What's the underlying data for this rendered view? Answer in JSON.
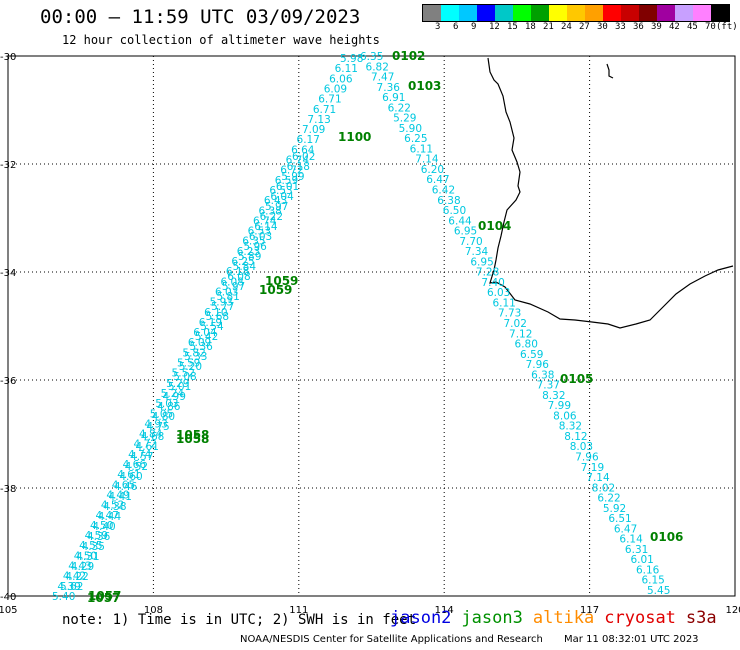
{
  "header": {
    "title": "00:00 – 11:59 UTC 03/09/2023",
    "subtitle": "12 hour collection of altimeter wave heights"
  },
  "legend": {
    "unit": "(ft)",
    "ticks": [
      "3",
      "6",
      "9",
      "12",
      "15",
      "18",
      "21",
      "24",
      "27",
      "30",
      "33",
      "36",
      "39",
      "42",
      "45",
      "70"
    ],
    "colors": [
      "#808080",
      "#00ffff",
      "#00c8ff",
      "#0000ff",
      "#00c8c8",
      "#00ff00",
      "#00a000",
      "#ffff00",
      "#ffc800",
      "#ffa000",
      "#ff0000",
      "#c80000",
      "#800000",
      "#a000a0",
      "#c8a0ff",
      "#ff80ff",
      "#000000"
    ]
  },
  "map": {
    "lat_ticks": [
      "-30",
      "-32",
      "-34",
      "-36",
      "-38",
      "-40"
    ],
    "lon_ticks": [
      "105",
      "108",
      "111",
      "114",
      "117",
      "120"
    ],
    "track_color": "#00c8e0",
    "time_color": "#008000",
    "tracks": [
      {
        "id": "descending",
        "values": [
          "6.35",
          "6.82",
          "7.47",
          "7.36",
          "6.91",
          "6.22",
          "5.29",
          "5.90",
          "6.25",
          "6.11",
          "7.14",
          "6.20",
          "6.47",
          "6.42",
          "6.38",
          "6.50",
          "6.44",
          "6.95",
          "7.70",
          "7.34",
          "6.95",
          "7.28",
          "7.40",
          "6.03",
          "6.11",
          "7.73",
          "7.02",
          "7.12",
          "6.80",
          "6.59",
          "7.96",
          "6.38",
          "7.37",
          "8.32",
          "7.99",
          "8.06",
          "8.32",
          "8.12",
          "8.03",
          "7.96",
          "7.19",
          "7.14",
          "8.02",
          "6.22",
          "5.92",
          "6.51",
          "6.47",
          "6.14",
          "6.31",
          "6.01",
          "6.16",
          "6.15",
          "5.45"
        ]
      },
      {
        "id": "ascending-a",
        "values": [
          "5.98",
          "6.11",
          "6.06",
          "6.09",
          "6.71",
          "6.71",
          "7.13",
          "7.09",
          "6.17",
          "6.64",
          "6.74",
          "6.72",
          "6.59",
          "6.53",
          "6.43",
          "6.38",
          "6.74",
          "6.53",
          "6.35",
          "6.23",
          "6.25",
          "6.18",
          "6.08",
          "6.03",
          "5.93",
          "6.10",
          "6.19",
          "6.04",
          "6.09",
          "5.82",
          "5.59",
          "5.52",
          "5.29",
          "5.24",
          "5.03",
          "5.05",
          "4.93",
          "4.84",
          "4.72",
          "4.74",
          "4.66",
          "4.61",
          "4.65",
          "4.49",
          "4.52",
          "4.47",
          "4.50",
          "4.59",
          "4.55",
          "4.50",
          "4.43",
          "4.42",
          "4.39",
          "5.40"
        ]
      },
      {
        "id": "ascending-b",
        "values": [
          "6.02",
          "6.18",
          "5.99",
          "6.01",
          "6.04",
          "5.97",
          "6.22",
          "6.14",
          "6.03",
          "5.96",
          "5.89",
          "5.84",
          "6.08",
          "5.97",
          "5.81",
          "5.77",
          "5.68",
          "5.54",
          "5.42",
          "5.36",
          "5.33",
          "5.20",
          "5.08",
          "5.01",
          "4.99",
          "4.86",
          "4.80",
          "4.75",
          "4.68",
          "4.61",
          "4.57",
          "4.52",
          "4.60",
          "4.46",
          "4.41",
          "4.38",
          "4.44",
          "4.40",
          "4.36",
          "4.35",
          "4.31",
          "4.29",
          "4.22",
          "5.62"
        ]
      }
    ],
    "time_labels": [
      "0102",
      "0103",
      "1100",
      "0104",
      "1059",
      "1059",
      "0105",
      "1058",
      "1058",
      "0106",
      "1057",
      "1057"
    ]
  },
  "footer": {
    "note": "note: 1) Time is in UTC; 2) SWH is in feet",
    "satellites": [
      {
        "name": "jason2",
        "color": "#0000e0"
      },
      {
        "name": "jason3",
        "color": "#009000"
      },
      {
        "name": "altika",
        "color": "#ff8c00"
      },
      {
        "name": "cryosat",
        "color": "#e00000"
      },
      {
        "name": "s3a",
        "color": "#8b0000"
      }
    ],
    "credit": "NOAA/NESDIS Center for Satellite Applications and Research",
    "timestamp": "Mar 11 08:32:01 UTC 2023"
  }
}
